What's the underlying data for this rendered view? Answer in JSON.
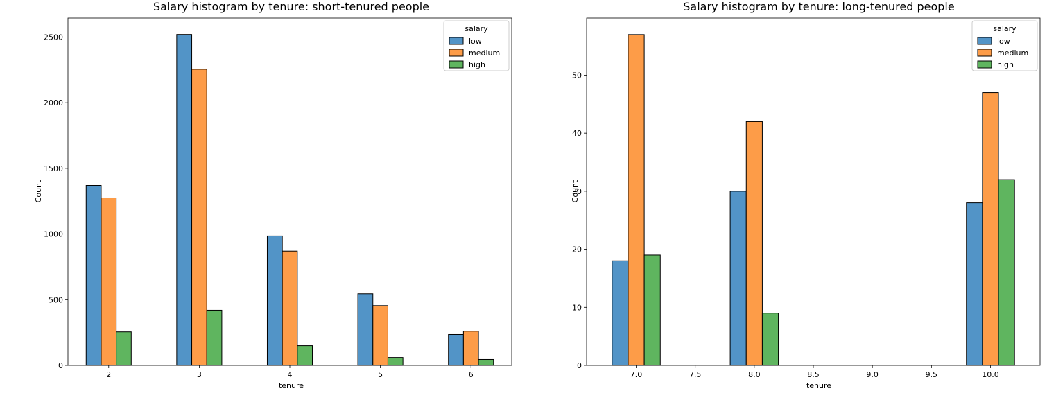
{
  "chart_data": [
    {
      "type": "bar",
      "title": "Salary histogram by tenure: short-tenured people",
      "xlabel": "tenure",
      "ylabel": "Count",
      "xlim": [
        1.55,
        6.45
      ],
      "ylim": [
        0,
        2645
      ],
      "xticks": [
        2,
        3,
        4,
        5,
        6
      ],
      "xtick_labels": [
        "2",
        "3",
        "4",
        "5",
        "6"
      ],
      "yticks": [
        0,
        500,
        1000,
        1500,
        2000,
        2500
      ],
      "ytick_labels": [
        "0",
        "500",
        "1000",
        "1500",
        "2000",
        "2500"
      ],
      "bar_width": 0.166,
      "categories": [
        2,
        3,
        4,
        5,
        6
      ],
      "legend": {
        "title": "salary",
        "position": "top-right"
      },
      "series": [
        {
          "name": "low",
          "color": "#5294c7",
          "values": [
            1370,
            2520,
            985,
            545,
            235
          ]
        },
        {
          "name": "medium",
          "color": "#fd9c48",
          "values": [
            1275,
            2255,
            870,
            455,
            260
          ]
        },
        {
          "name": "high",
          "color": "#5fb55f",
          "values": [
            255,
            420,
            150,
            60,
            45
          ]
        }
      ],
      "grid": false
    },
    {
      "type": "bar",
      "title": "Salary histogram by tenure: long-tenured people",
      "xlabel": "tenure",
      "ylabel": "Count",
      "xlim": [
        6.58,
        10.42
      ],
      "ylim": [
        0,
        59.85
      ],
      "xticks": [
        7.0,
        7.5,
        8.0,
        8.5,
        9.0,
        9.5,
        10.0
      ],
      "xtick_labels": [
        "7.0",
        "7.5",
        "8.0",
        "8.5",
        "9.0",
        "9.5",
        "10.0"
      ],
      "yticks": [
        0,
        10,
        20,
        30,
        40,
        50
      ],
      "ytick_labels": [
        "0",
        "10",
        "20",
        "30",
        "40",
        "50"
      ],
      "bar_width": 0.136,
      "categories": [
        7,
        8,
        9,
        10
      ],
      "legend": {
        "title": "salary",
        "position": "top-right"
      },
      "series": [
        {
          "name": "low",
          "color": "#5294c7",
          "values": [
            18,
            30,
            0,
            28
          ]
        },
        {
          "name": "medium",
          "color": "#fd9c48",
          "values": [
            57,
            42,
            0,
            47
          ]
        },
        {
          "name": "high",
          "color": "#5fb55f",
          "values": [
            19,
            9,
            0,
            32
          ]
        }
      ],
      "grid": false
    }
  ]
}
